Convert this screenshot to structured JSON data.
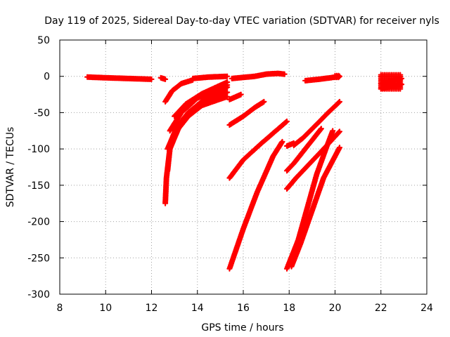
{
  "chart_data": {
    "type": "scatter",
    "title": "Day 119 of 2025, Sidereal Day-to-day VTEC variation (SDTVAR) for receiver nyls",
    "xlabel": "GPS time / hours",
    "ylabel": "SDTVAR / TECUs",
    "xlim": [
      8,
      24
    ],
    "ylim": [
      -300,
      50
    ],
    "xticks": [
      8,
      10,
      12,
      14,
      16,
      18,
      20,
      22,
      24
    ],
    "yticks": [
      -300,
      -250,
      -200,
      -150,
      -100,
      -50,
      0,
      50
    ],
    "grid": true,
    "marker": "plus",
    "color": "#ff0000",
    "tracks": [
      {
        "points": [
          [
            9.2,
            -1
          ],
          [
            10,
            -2
          ],
          [
            11,
            -3
          ],
          [
            12,
            -4
          ]
        ]
      },
      {
        "points": [
          [
            12.4,
            -2
          ],
          [
            12.6,
            -4
          ]
        ]
      },
      {
        "points": [
          [
            12.6,
            -35
          ],
          [
            12.9,
            -20
          ],
          [
            13.3,
            -10
          ],
          [
            13.8,
            -5
          ]
        ]
      },
      {
        "points": [
          [
            12.6,
            -175
          ],
          [
            12.65,
            -140
          ],
          [
            12.8,
            -100
          ],
          [
            13.2,
            -70
          ],
          [
            13.7,
            -50
          ],
          [
            14.3,
            -35
          ],
          [
            15.3,
            -22
          ]
        ]
      },
      {
        "points": [
          [
            12.7,
            -130
          ],
          [
            12.8,
            -100
          ],
          [
            13.1,
            -75
          ],
          [
            13.6,
            -55
          ],
          [
            14.2,
            -40
          ],
          [
            15.3,
            -28
          ]
        ]
      },
      {
        "points": [
          [
            12.7,
            -100
          ],
          [
            13.1,
            -70
          ],
          [
            13.6,
            -50
          ],
          [
            14.3,
            -32
          ],
          [
            15.3,
            -15
          ]
        ]
      },
      {
        "points": [
          [
            12.8,
            -75
          ],
          [
            13.3,
            -50
          ],
          [
            14.0,
            -30
          ],
          [
            15.3,
            -12
          ]
        ]
      },
      {
        "points": [
          [
            13.0,
            -55
          ],
          [
            13.5,
            -38
          ],
          [
            14.2,
            -24
          ],
          [
            15.3,
            -8
          ]
        ]
      },
      {
        "points": [
          [
            13.8,
            -3
          ],
          [
            14.5,
            -1
          ],
          [
            15.3,
            0
          ]
        ]
      },
      {
        "points": [
          [
            15.4,
            -32
          ],
          [
            15.9,
            -25
          ]
        ]
      },
      {
        "points": [
          [
            15.4,
            -67
          ],
          [
            16.0,
            -55
          ],
          [
            16.5,
            -43
          ],
          [
            16.9,
            -35
          ]
        ]
      },
      {
        "points": [
          [
            15.4,
            -140
          ],
          [
            16.0,
            -115
          ],
          [
            16.8,
            -92
          ],
          [
            17.9,
            -62
          ]
        ]
      },
      {
        "points": [
          [
            15.4,
            -265
          ],
          [
            16.0,
            -210
          ],
          [
            16.6,
            -160
          ],
          [
            17.3,
            -110
          ],
          [
            17.7,
            -90
          ]
        ]
      },
      {
        "points": [
          [
            15.5,
            -3
          ],
          [
            16.5,
            0
          ],
          [
            17.0,
            3
          ],
          [
            17.5,
            4
          ],
          [
            17.8,
            3
          ]
        ]
      },
      {
        "points": [
          [
            17.9,
            -96
          ],
          [
            18.2,
            -92
          ]
        ]
      },
      {
        "points": [
          [
            17.9,
            -130
          ],
          [
            18.2,
            -120
          ],
          [
            18.7,
            -100
          ],
          [
            19.4,
            -72
          ]
        ]
      },
      {
        "points": [
          [
            17.9,
            -265
          ],
          [
            18.4,
            -225
          ],
          [
            18.8,
            -180
          ],
          [
            19.2,
            -135
          ],
          [
            19.6,
            -100
          ],
          [
            19.9,
            -75
          ]
        ]
      },
      {
        "points": [
          [
            18.2,
            -95
          ],
          [
            18.6,
            -85
          ],
          [
            19.2,
            -66
          ],
          [
            19.7,
            -50
          ],
          [
            20.2,
            -35
          ]
        ]
      },
      {
        "points": [
          [
            17.9,
            -155
          ],
          [
            18.3,
            -140
          ],
          [
            18.9,
            -120
          ],
          [
            19.5,
            -100
          ],
          [
            20.2,
            -76
          ]
        ]
      },
      {
        "points": [
          [
            18.1,
            -262
          ],
          [
            18.5,
            -230
          ],
          [
            19.0,
            -185
          ],
          [
            19.5,
            -140
          ],
          [
            20.2,
            -98
          ]
        ]
      },
      {
        "points": [
          [
            18.7,
            -6
          ],
          [
            19.3,
            -4
          ],
          [
            19.8,
            -2
          ],
          [
            20.2,
            0
          ]
        ]
      },
      {
        "points": [
          [
            22.0,
            -10
          ],
          [
            22.3,
            -8
          ],
          [
            22.6,
            -5
          ],
          [
            22.9,
            -3
          ]
        ]
      },
      {
        "points": [
          [
            22.0,
            -17
          ],
          [
            22.3,
            -15
          ],
          [
            22.6,
            -13
          ],
          [
            22.9,
            -11
          ]
        ]
      }
    ],
    "blocks": [
      {
        "x": [
          20.0,
          20.2
        ],
        "y": [
          -3,
          1
        ]
      },
      {
        "x": [
          22.0,
          22.9
        ],
        "y": [
          -18,
          2
        ]
      }
    ]
  }
}
